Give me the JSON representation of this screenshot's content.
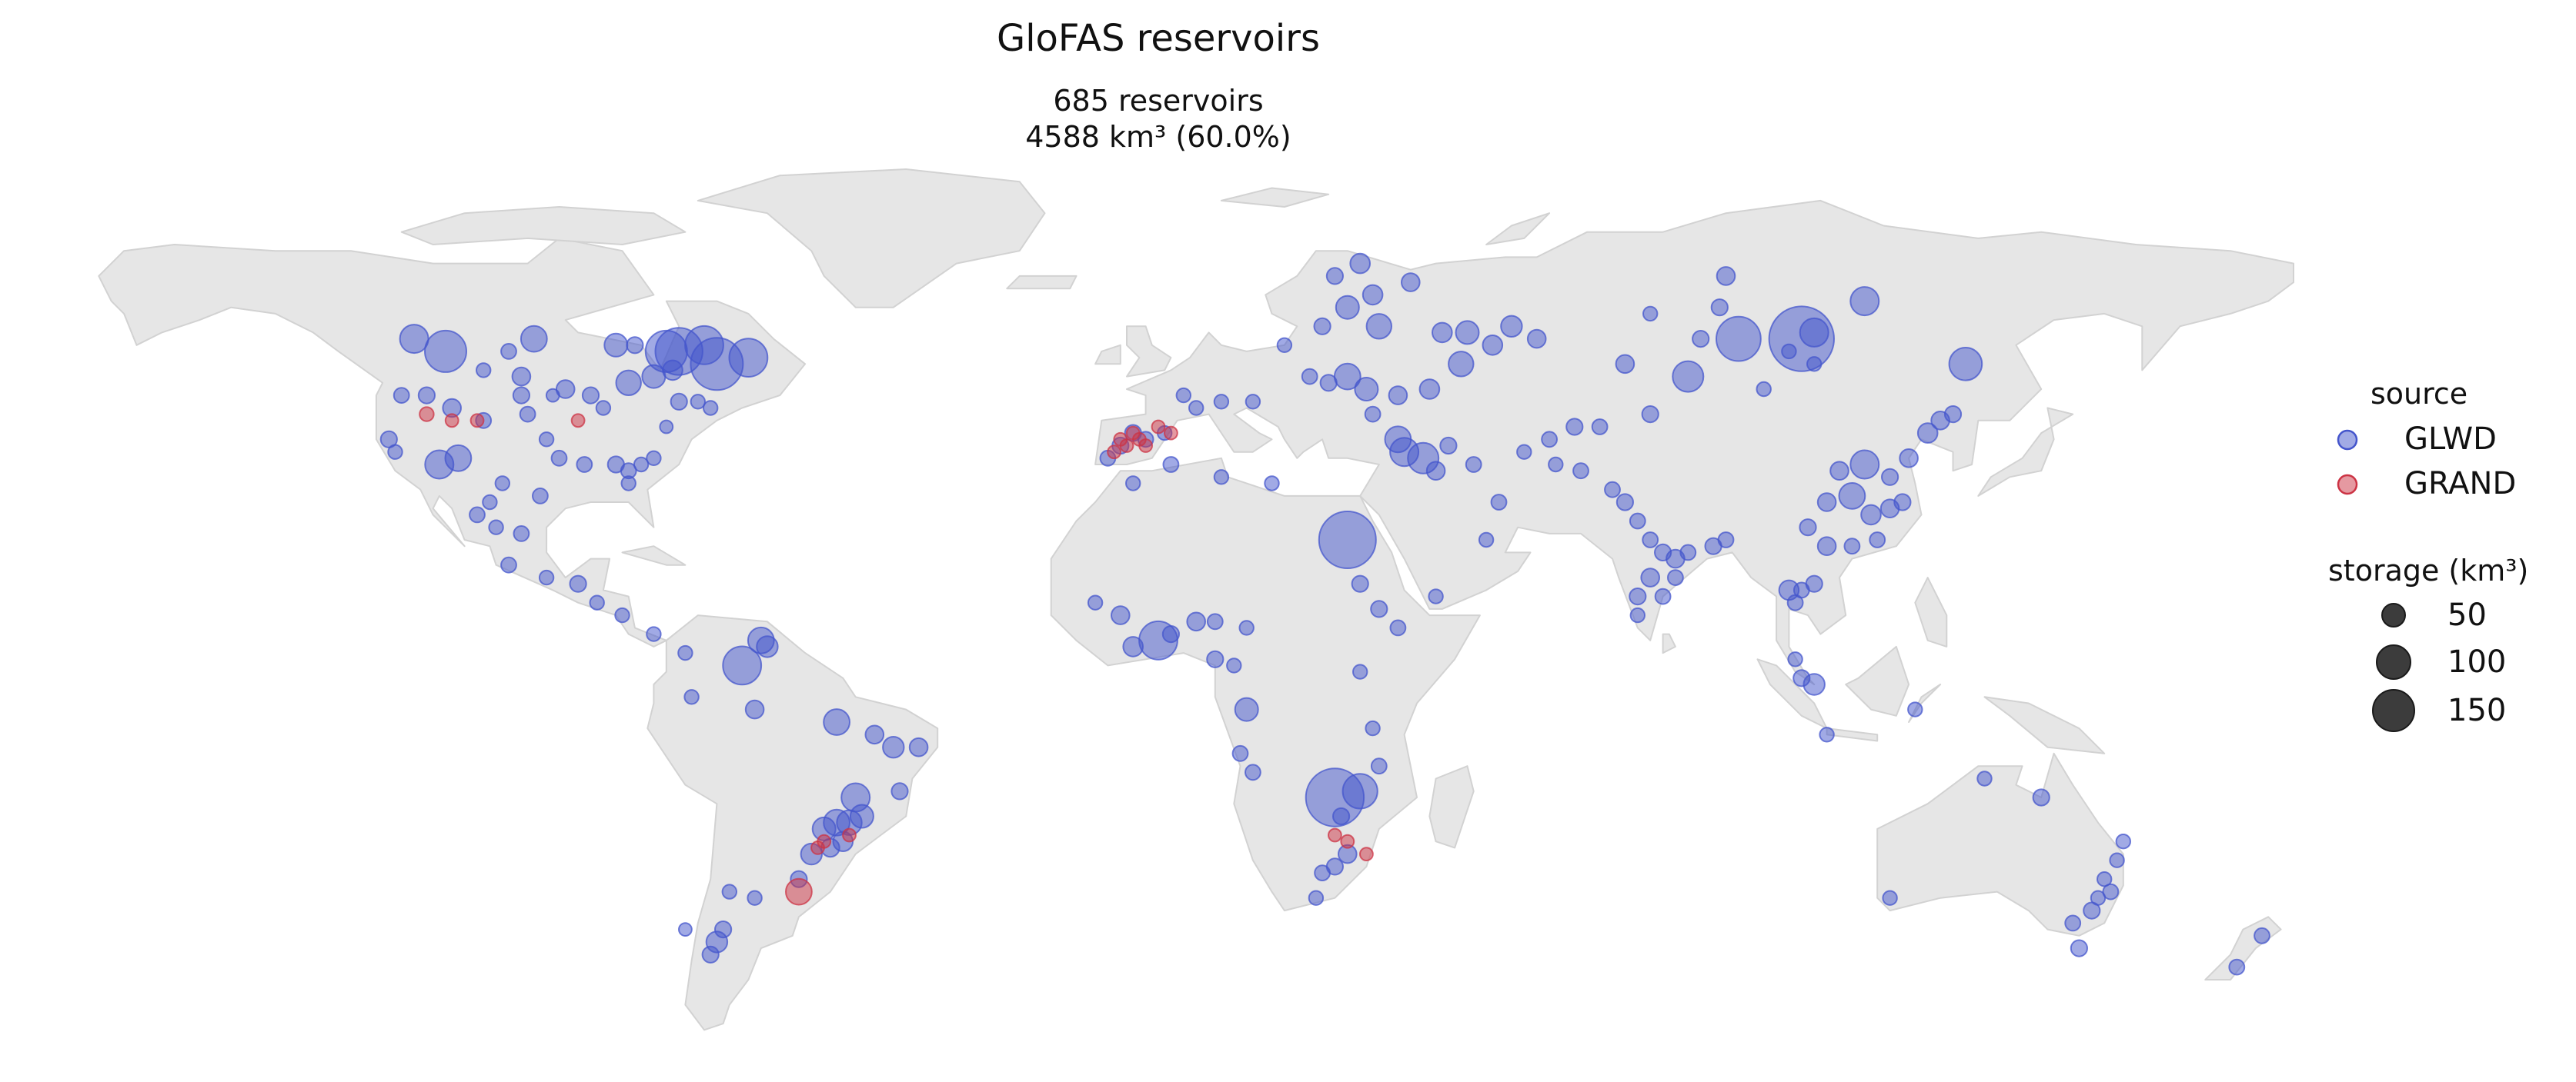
{
  "title": "GloFAS reservoirs",
  "subtitle": {
    "line1": "685 reservoirs",
    "line2": "4588 km³ (60.0%)"
  },
  "colors": {
    "land": "#e6e6e6",
    "land_edge": "#d2d2d2",
    "glwd": "#4455cc",
    "grand": "#cc3344",
    "size_marker": "#1a1a1a"
  },
  "legend": {
    "source_title": "source",
    "sources": [
      "GLWD",
      "GRAND"
    ],
    "storage_title": "storage (km³)",
    "storage_sizes": [
      50,
      100,
      150
    ]
  },
  "chart_data": {
    "type": "scatter",
    "projection": "equirectangular",
    "lon_range": [
      -180,
      180
    ],
    "lat_range": [
      -58,
      83
    ],
    "series": [
      {
        "name": "GLWD",
        "points": [
          [
            -113,
            54,
            60
          ],
          [
            -118,
            56,
            25
          ],
          [
            -103,
            54,
            5
          ],
          [
            -101,
            50,
            8
          ],
          [
            -107,
            51,
            4
          ],
          [
            -99,
            56,
            20
          ],
          [
            -86,
            55,
            15
          ],
          [
            -84,
            49,
            18
          ],
          [
            -76,
            54,
            80
          ],
          [
            -78,
            54,
            60
          ],
          [
            -72,
            55,
            50
          ],
          [
            -70,
            52,
            100
          ],
          [
            -65,
            53,
            50
          ],
          [
            -80,
            50,
            15
          ],
          [
            -83,
            55,
            6
          ],
          [
            -77,
            51,
            10
          ],
          [
            -90,
            47,
            6
          ],
          [
            -88,
            45,
            4
          ],
          [
            -94,
            48,
            8
          ],
          [
            -96,
            47,
            3
          ],
          [
            -112,
            45,
            8
          ],
          [
            -116,
            47,
            6
          ],
          [
            -120,
            47,
            5
          ],
          [
            -122,
            40,
            6
          ],
          [
            -121,
            38,
            4
          ],
          [
            -114,
            36,
            25
          ],
          [
            -111,
            37,
            20
          ],
          [
            -107,
            43,
            5
          ],
          [
            -101,
            47,
            6
          ],
          [
            -100,
            44,
            5
          ],
          [
            -97,
            40,
            4
          ],
          [
            -95,
            37,
            5
          ],
          [
            -91,
            36,
            5
          ],
          [
            -86,
            36,
            6
          ],
          [
            -84,
            35,
            5
          ],
          [
            -84,
            33,
            4
          ],
          [
            -82,
            36,
            4
          ],
          [
            -80,
            37,
            4
          ],
          [
            -78,
            42,
            3
          ],
          [
            -76,
            46,
            6
          ],
          [
            -73,
            46,
            4
          ],
          [
            -71,
            45,
            4
          ],
          [
            -98,
            31,
            5
          ],
          [
            -104,
            33,
            4
          ],
          [
            -106,
            30,
            4
          ],
          [
            -101,
            25,
            5
          ],
          [
            -105,
            26,
            4
          ],
          [
            -108,
            28,
            5
          ],
          [
            -103,
            20,
            5
          ],
          [
            -97,
            18,
            4
          ],
          [
            -92,
            17,
            6
          ],
          [
            -89,
            14,
            4
          ],
          [
            -85,
            12,
            4
          ],
          [
            -80,
            9,
            4
          ],
          [
            -66,
            4,
            50
          ],
          [
            -63,
            8,
            20
          ],
          [
            -62,
            7,
            12
          ],
          [
            -75,
            6,
            4
          ],
          [
            -74,
            -1,
            4
          ],
          [
            -64,
            -3,
            8
          ],
          [
            -51,
            -5,
            20
          ],
          [
            -45,
            -7,
            8
          ],
          [
            -42,
            -9,
            12
          ],
          [
            -38,
            -9,
            8
          ],
          [
            -41,
            -16,
            6
          ],
          [
            -48,
            -17,
            25
          ],
          [
            -47,
            -20,
            15
          ],
          [
            -49,
            -21,
            18
          ],
          [
            -51,
            -21,
            20
          ],
          [
            -53,
            -22,
            15
          ],
          [
            -50,
            -24,
            10
          ],
          [
            -52,
            -25,
            8
          ],
          [
            -55,
            -26,
            12
          ],
          [
            -57,
            -30,
            6
          ],
          [
            -64,
            -33,
            4
          ],
          [
            -68,
            -32,
            4
          ],
          [
            -69,
            -38,
            6
          ],
          [
            -70,
            -40,
            12
          ],
          [
            -71,
            -42,
            6
          ],
          [
            -75,
            -38,
            3
          ],
          [
            -8,
            37,
            5
          ],
          [
            -6,
            39,
            6
          ],
          [
            -4,
            41,
            6
          ],
          [
            -2,
            40,
            5
          ],
          [
            1,
            41,
            4
          ],
          [
            4,
            47,
            4
          ],
          [
            6,
            45,
            4
          ],
          [
            10,
            46,
            4
          ],
          [
            15,
            46,
            4
          ],
          [
            24,
            50,
            5
          ],
          [
            20,
            55,
            4
          ],
          [
            26,
            58,
            6
          ],
          [
            30,
            61,
            15
          ],
          [
            34,
            63,
            10
          ],
          [
            28,
            66,
            6
          ],
          [
            32,
            68,
            10
          ],
          [
            40,
            65,
            8
          ],
          [
            35,
            58,
            18
          ],
          [
            45,
            57,
            10
          ],
          [
            49,
            57,
            15
          ],
          [
            53,
            55,
            10
          ],
          [
            56,
            58,
            12
          ],
          [
            60,
            56,
            8
          ],
          [
            48,
            52,
            18
          ],
          [
            43,
            48,
            10
          ],
          [
            38,
            47,
            8
          ],
          [
            33,
            48,
            15
          ],
          [
            30,
            50,
            20
          ],
          [
            27,
            49,
            6
          ],
          [
            34,
            44,
            5
          ],
          [
            38,
            40,
            20
          ],
          [
            39,
            38,
            25
          ],
          [
            42,
            37,
            30
          ],
          [
            44,
            35,
            8
          ],
          [
            46,
            39,
            6
          ],
          [
            50,
            36,
            5
          ],
          [
            54,
            30,
            5
          ],
          [
            58,
            38,
            4
          ],
          [
            62,
            40,
            5
          ],
          [
            66,
            42,
            6
          ],
          [
            70,
            42,
            5
          ],
          [
            78,
            44,
            6
          ],
          [
            74,
            52,
            8
          ],
          [
            84,
            50,
            30
          ],
          [
            92,
            56,
            70
          ],
          [
            102,
            56,
            160
          ],
          [
            104,
            57,
            25
          ],
          [
            112,
            62,
            25
          ],
          [
            128,
            52,
            35
          ],
          [
            96,
            48,
            4
          ],
          [
            90,
            66,
            8
          ],
          [
            86,
            56,
            6
          ],
          [
            89,
            61,
            6
          ],
          [
            78,
            60,
            4
          ],
          [
            100,
            54,
            4
          ],
          [
            104,
            52,
            4
          ],
          [
            112,
            36,
            25
          ],
          [
            108,
            35,
            8
          ],
          [
            116,
            34,
            6
          ],
          [
            119,
            37,
            8
          ],
          [
            122,
            41,
            10
          ],
          [
            124,
            43,
            8
          ],
          [
            126,
            44,
            6
          ],
          [
            110,
            31,
            20
          ],
          [
            106,
            30,
            8
          ],
          [
            113,
            28,
            10
          ],
          [
            116,
            29,
            8
          ],
          [
            118,
            30,
            6
          ],
          [
            103,
            26,
            6
          ],
          [
            106,
            23,
            8
          ],
          [
            110,
            23,
            5
          ],
          [
            114,
            24,
            5
          ],
          [
            100,
            16,
            10
          ],
          [
            101,
            14,
            5
          ],
          [
            102,
            16,
            5
          ],
          [
            104,
            17,
            6
          ],
          [
            101,
            5,
            4
          ],
          [
            102,
            2,
            6
          ],
          [
            104,
            1,
            12
          ],
          [
            106,
            -7,
            4
          ],
          [
            120,
            -3,
            4
          ],
          [
            76,
            27,
            5
          ],
          [
            78,
            24,
            5
          ],
          [
            80,
            22,
            6
          ],
          [
            82,
            21,
            8
          ],
          [
            84,
            22,
            5
          ],
          [
            78,
            18,
            8
          ],
          [
            76,
            15,
            6
          ],
          [
            80,
            15,
            5
          ],
          [
            82,
            18,
            5
          ],
          [
            88,
            23,
            6
          ],
          [
            90,
            24,
            5
          ],
          [
            76,
            12,
            4
          ],
          [
            74,
            30,
            6
          ],
          [
            72,
            32,
            5
          ],
          [
            67,
            35,
            5
          ],
          [
            63,
            36,
            4
          ],
          [
            18,
            33,
            4
          ],
          [
            -4,
            33,
            4
          ],
          [
            2,
            36,
            5
          ],
          [
            10,
            34,
            4
          ],
          [
            30,
            24,
            120
          ],
          [
            32,
            17,
            6
          ],
          [
            35,
            13,
            6
          ],
          [
            38,
            10,
            5
          ],
          [
            32,
            3,
            4
          ],
          [
            -10,
            14,
            4
          ],
          [
            -6,
            12,
            8
          ],
          [
            -4,
            7,
            10
          ],
          [
            0,
            8,
            50
          ],
          [
            2,
            9,
            6
          ],
          [
            6,
            11,
            8
          ],
          [
            9,
            11,
            5
          ],
          [
            14,
            10,
            4
          ],
          [
            9,
            5,
            6
          ],
          [
            12,
            4,
            4
          ],
          [
            14,
            -3,
            15
          ],
          [
            13,
            -10,
            5
          ],
          [
            15,
            -13,
            5
          ],
          [
            28,
            -17,
            125
          ],
          [
            32,
            -16,
            40
          ],
          [
            29,
            -20,
            6
          ],
          [
            35,
            -12,
            5
          ],
          [
            34,
            -6,
            4
          ],
          [
            30,
            -26,
            8
          ],
          [
            28,
            -28,
            6
          ],
          [
            26,
            -29,
            5
          ],
          [
            25,
            -33,
            4
          ],
          [
            52,
            24,
            4
          ],
          [
            44,
            15,
            4
          ],
          [
            140,
            -17,
            6
          ],
          [
            150,
            -30,
            4
          ],
          [
            151,
            -32,
            5
          ],
          [
            149,
            -33,
            4
          ],
          [
            148,
            -35,
            6
          ],
          [
            145,
            -37,
            5
          ],
          [
            146,
            -41,
            6
          ],
          [
            171,
            -44,
            5
          ],
          [
            175,
            -39,
            5
          ],
          [
            131,
            -14,
            4
          ],
          [
            152,
            -27,
            4
          ],
          [
            153,
            -24,
            4
          ],
          [
            116,
            -33,
            4
          ]
        ]
      },
      {
        "name": "GRAND",
        "points": [
          [
            -57,
            -32,
            20
          ],
          [
            -116,
            44,
            4
          ],
          [
            -112,
            43,
            3
          ],
          [
            -108,
            43,
            3
          ],
          [
            -92,
            43,
            3
          ],
          [
            -4,
            41,
            3
          ],
          [
            -3,
            40,
            3
          ],
          [
            -5,
            39,
            3
          ],
          [
            -7,
            38,
            3
          ],
          [
            -2,
            39,
            3
          ],
          [
            2,
            41,
            3
          ],
          [
            0,
            42,
            3
          ],
          [
            -6,
            40,
            3
          ],
          [
            28,
            -23,
            3
          ],
          [
            30,
            -24,
            3
          ],
          [
            33,
            -26,
            3
          ],
          [
            -53,
            -24,
            3
          ],
          [
            -49,
            -23,
            3
          ],
          [
            -54,
            -25,
            3
          ]
        ]
      }
    ]
  }
}
